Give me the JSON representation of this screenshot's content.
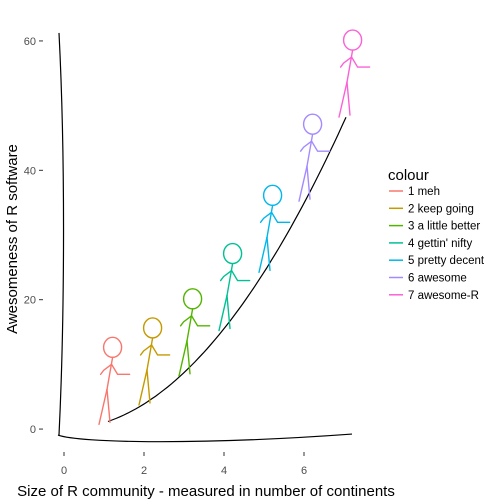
{
  "chart_data": {
    "type": "line",
    "style": "xkcd",
    "title": "",
    "xlabel": "Size of R community - measured in number of continents",
    "ylabel": "Awesomeness of R software",
    "xlim": [
      -0.15,
      7.4
    ],
    "ylim": [
      -2,
      62
    ],
    "x_ticks": [
      0,
      2,
      4,
      6
    ],
    "y_ticks": [
      0,
      20,
      40,
      60
    ],
    "grid": false,
    "trend_curve": {
      "x_from": 1.1,
      "x_to": 7.05,
      "coef": 0.97,
      "power": 2
    },
    "legend": {
      "title": "colour",
      "position": "right"
    },
    "series": [
      {
        "name": "1 meh",
        "x": 1,
        "y": 1.5,
        "color": "#F8766D"
      },
      {
        "name": "2 keep going",
        "x": 2,
        "y": 4.5,
        "color": "#C49A00"
      },
      {
        "name": "3 a little better",
        "x": 3,
        "y": 9,
        "color": "#53B400"
      },
      {
        "name": "4 gettin' nifty",
        "x": 4,
        "y": 16,
        "color": "#00C094"
      },
      {
        "name": "5 pretty decent",
        "x": 5,
        "y": 25,
        "color": "#00B6EB"
      },
      {
        "name": "6 awesome",
        "x": 6,
        "y": 36,
        "color": "#A58AFF"
      },
      {
        "name": "7 awesome-R",
        "x": 7,
        "y": 49,
        "color": "#FB61D7"
      }
    ]
  }
}
